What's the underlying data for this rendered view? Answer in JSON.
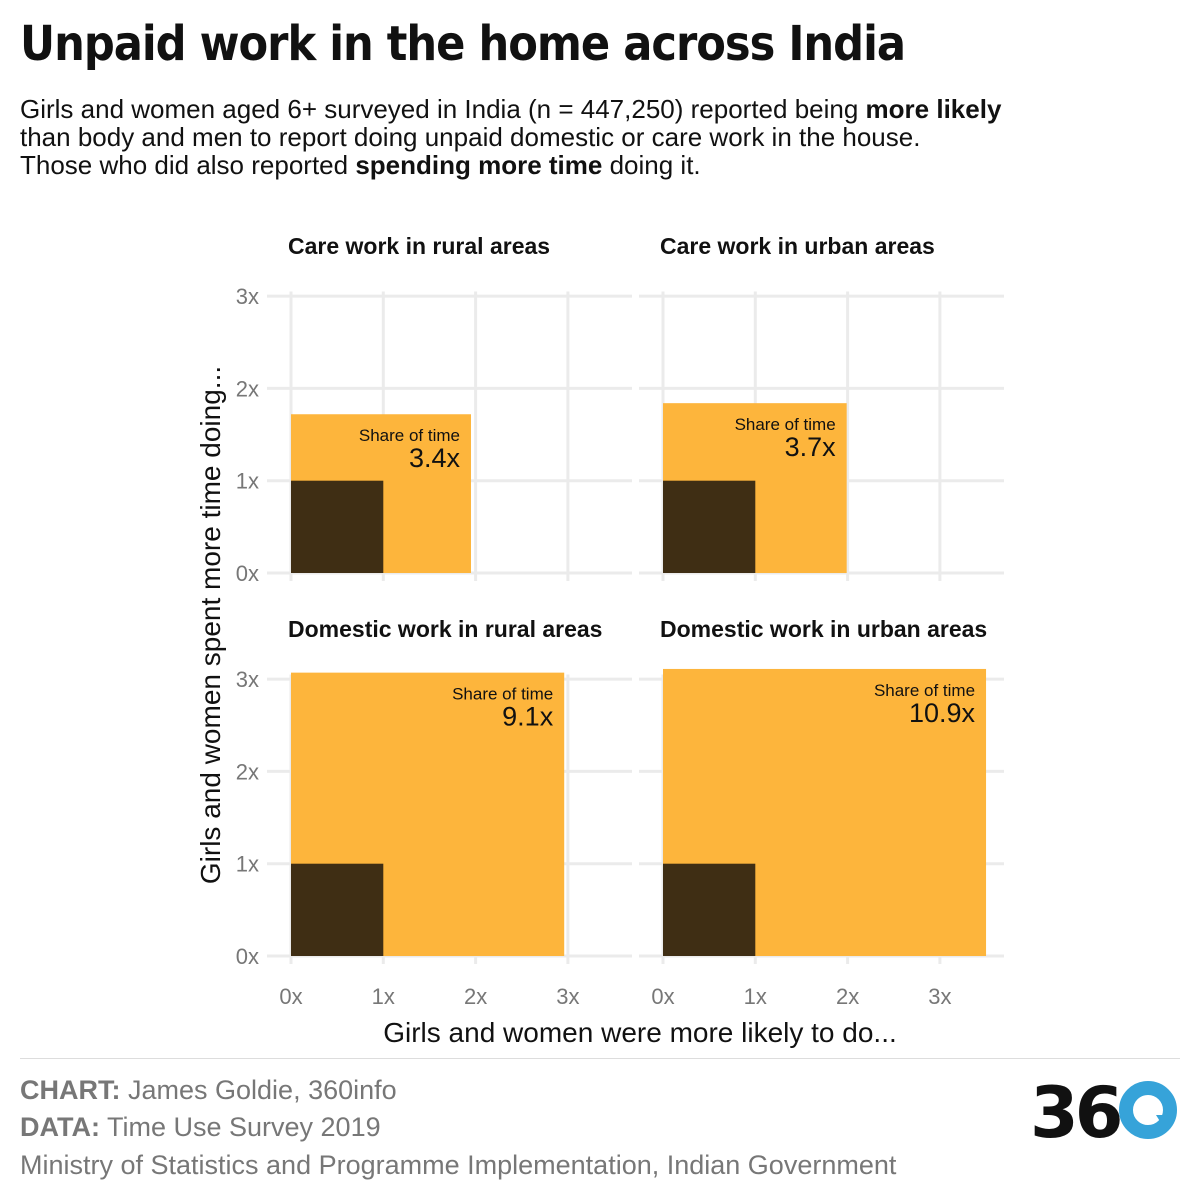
{
  "title": "Unpaid work in the home across India",
  "subtitle": {
    "line1_a": "Girls and women aged 6+ surveyed in India (n = 447,250) reported being ",
    "line1_b": "more likely",
    "line2": "than body and men to report doing unpaid domestic or care work in the house.",
    "line3_a": "Those who did also reported ",
    "line3_b": "spending more time",
    "line3_c": " doing it."
  },
  "chart_data": {
    "type": "area",
    "description_kind": "faceted proportional rectangles",
    "xlabel": "Girls and women were more likely to do...",
    "ylabel": "Girls and women spent more time doing...",
    "xlim": [
      0,
      3.5
    ],
    "ylim": [
      0,
      3.1
    ],
    "x_ticks": [
      "0x",
      "1x",
      "2x",
      "3x"
    ],
    "y_ticks": [
      "0x",
      "1x",
      "2x",
      "3x"
    ],
    "grid": true,
    "annotation_label": "Share of time",
    "panels": [
      {
        "title": "Care work in rural areas",
        "more_likely": 1.95,
        "more_time": 1.72,
        "share_of_time": "3.4x"
      },
      {
        "title": "Care work in urban areas",
        "more_likely": 1.99,
        "more_time": 1.84,
        "share_of_time": "3.7x"
      },
      {
        "title": "Domestic work in rural areas",
        "more_likely": 2.96,
        "more_time": 3.07,
        "share_of_time": "9.1x"
      },
      {
        "title": "Domestic work in urban areas",
        "more_likely": 3.5,
        "more_time": 3.11,
        "share_of_time": "10.9x"
      }
    ],
    "baseline": {
      "x": 1,
      "y": 1
    },
    "colors": {
      "women": "#FDB53C",
      "men": "#3F2E14",
      "grid": "#EBEBEB"
    }
  },
  "footer": {
    "chart_label": "CHART:",
    "chart_value": " James Goldie, 360info",
    "data_label": "DATA:",
    "data_value": " Time Use Survey 2019",
    "org": "Ministry of Statistics and Programme Implementation, Indian Government"
  },
  "logo": {
    "text": "36",
    "ring_color": "#36A3D9",
    "text_color": "#111111"
  }
}
